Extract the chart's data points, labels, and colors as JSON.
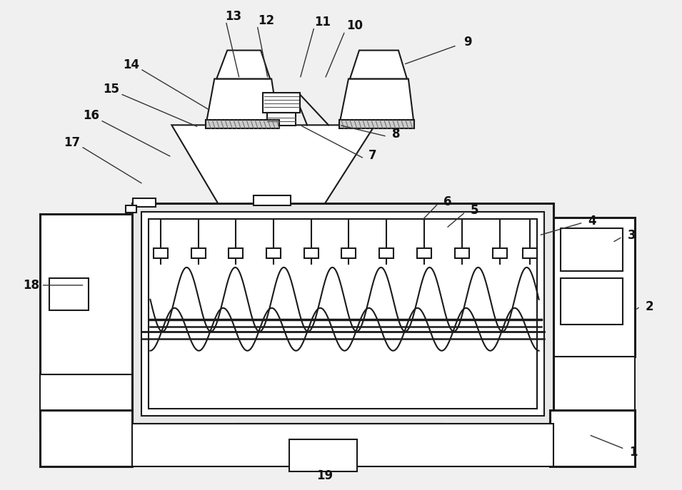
{
  "bg_color": "#f0f0f0",
  "lc": "#1a1a1a",
  "lw": 1.5,
  "tlw": 2.2,
  "fig_w": 9.55,
  "fig_h": 6.87
}
